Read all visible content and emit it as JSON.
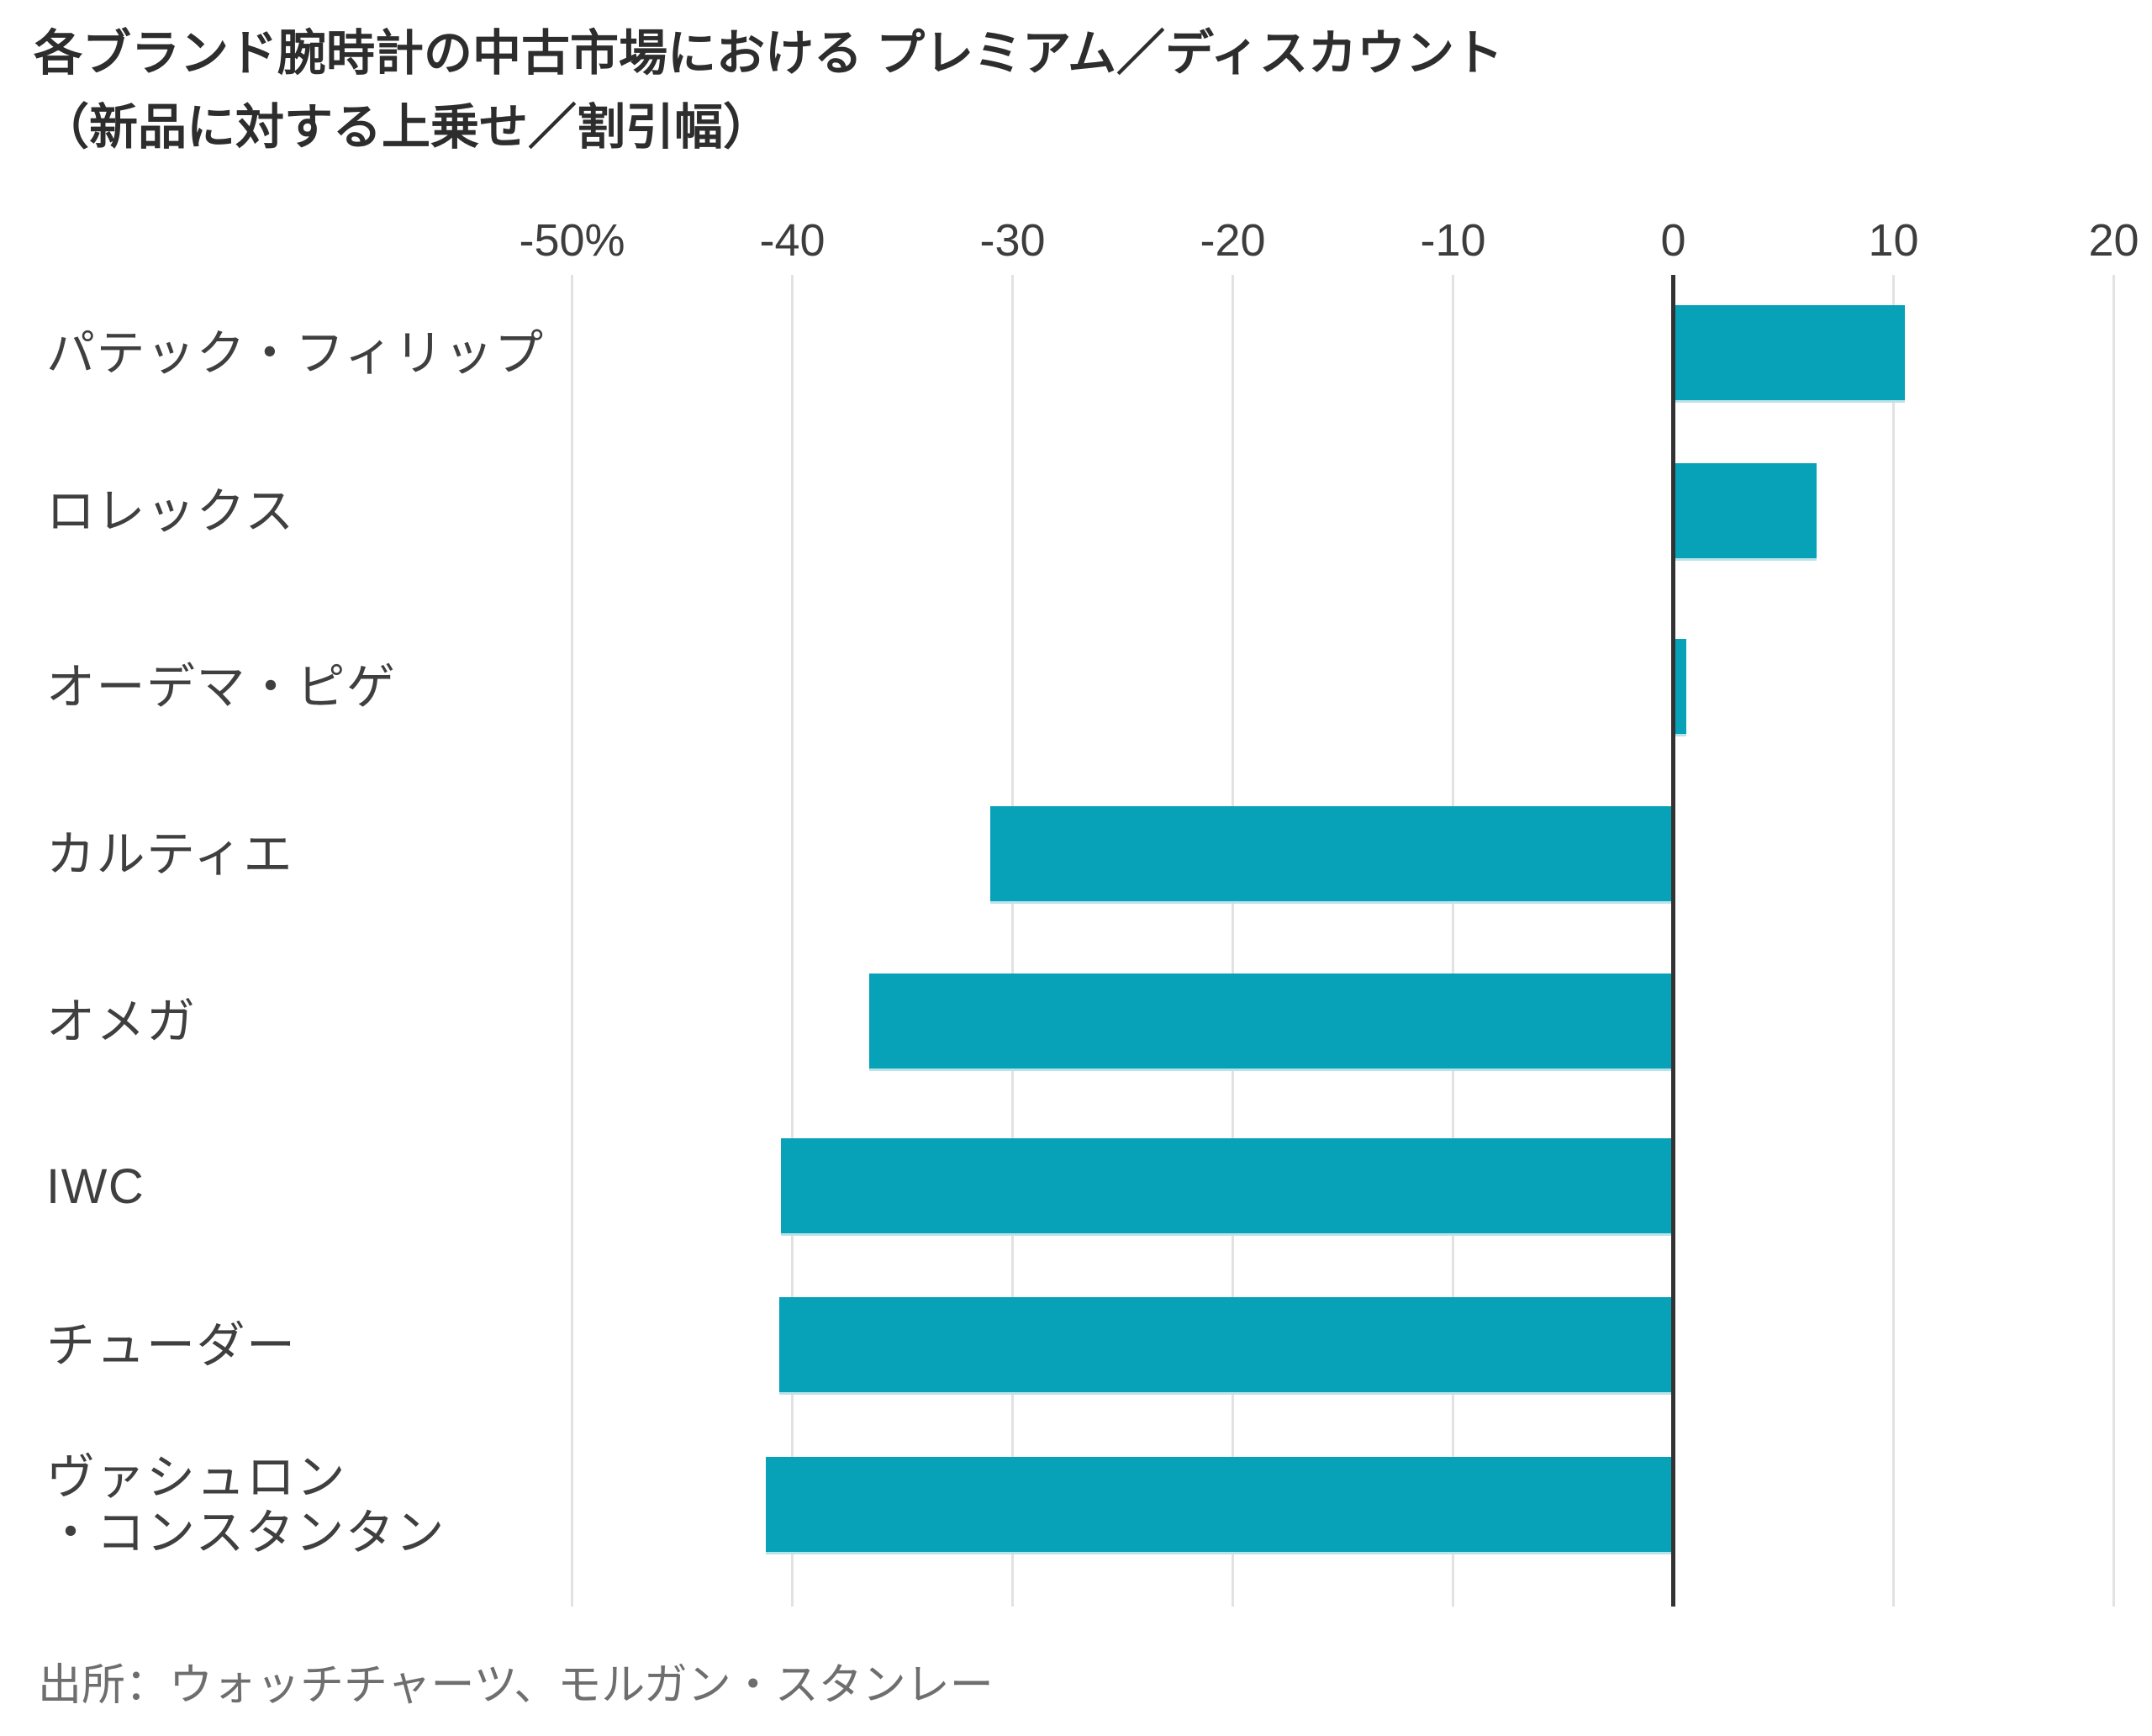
{
  "title": {
    "line1": "各ブランド腕時計の中古市場における プレミアム／ディスカウント",
    "line2": "（新品に対する上乗せ／割引幅）"
  },
  "source": "出所：ウォッチチャーツ、モルガン・スタンレー",
  "chart_data": {
    "type": "bar",
    "orientation": "horizontal",
    "categories": [
      "パテック・フィリップ",
      "ロレックス",
      "オーデマ・ピゲ",
      "カルティエ",
      "オメガ",
      "IWC",
      "チューダー",
      "ヴァシュロン\n・コンスタンタン"
    ],
    "keys": [
      "patek-philippe",
      "rolex",
      "audemars-piguet",
      "cartier",
      "omega",
      "iwc",
      "tudor",
      "vacheron-constantin"
    ],
    "values": [
      10.5,
      6.5,
      0.6,
      -31,
      -36.5,
      -40.5,
      -40.6,
      -41.2
    ],
    "unit": "%",
    "x_ticks": [
      -50,
      -40,
      -30,
      -20,
      -10,
      0,
      10,
      20
    ],
    "x_tick_labels": [
      "-50%",
      "-40",
      "-30",
      "-20",
      "-10",
      "0",
      "10",
      "20"
    ],
    "xlim": [
      -50,
      20
    ],
    "grid": true,
    "bar_color": "#07a1b8",
    "zero_line_color": "#333333",
    "gridline_color": "#e2e2e2"
  }
}
